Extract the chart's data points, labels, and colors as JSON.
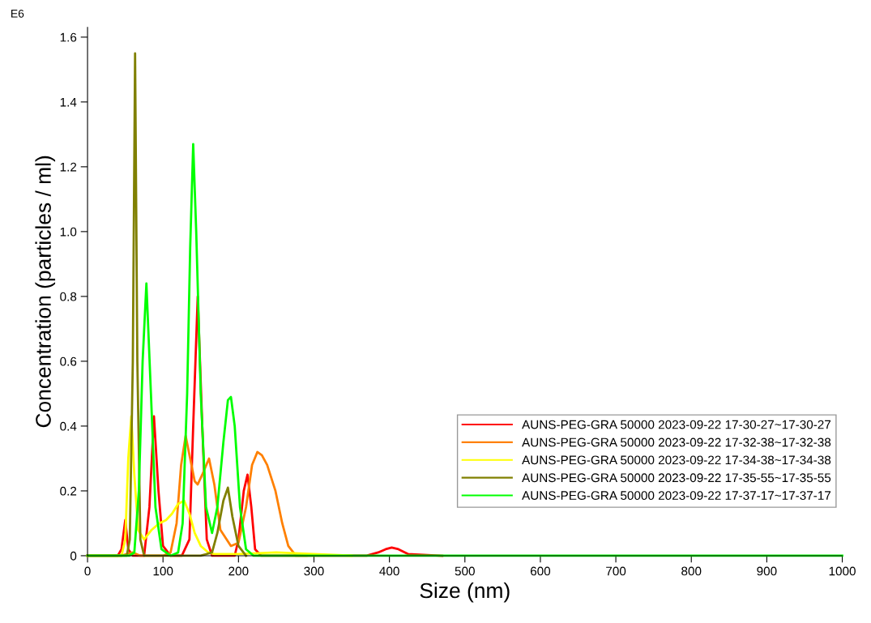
{
  "chart_data": {
    "type": "line",
    "xlabel": "Size (nm)",
    "ylabel": "Concentration (particles / ml)",
    "annotations": [
      "E6"
    ],
    "xlim": [
      0,
      1000
    ],
    "xticks": [
      0,
      100,
      200,
      300,
      400,
      500,
      600,
      700,
      800,
      900,
      1000
    ],
    "ylim": [
      0,
      1.63
    ],
    "yticks": [
      {
        "value": 0,
        "label": "0"
      },
      0.2,
      0.4,
      0.6,
      0.8,
      {
        "value": 1.0,
        "label": "1.0"
      },
      1.2,
      1.4,
      1.6
    ],
    "grid": false,
    "legend": "bottom right",
    "marker": "none",
    "line_style": "solid",
    "series": [
      {
        "name": "AUNS-PEG-GRA 50000 2023-09-22 17-30-27~17-30-27",
        "color": "#ff0000",
        "x": [
          0,
          40,
          45,
          50,
          54,
          60,
          75,
          82,
          88,
          94,
          100,
          110,
          125,
          135,
          140,
          146,
          152,
          158,
          165,
          195,
          200,
          207,
          212,
          217,
          222,
          230,
          300,
          370,
          385,
          395,
          403,
          412,
          425,
          470
        ],
        "values": [
          0,
          0,
          0.02,
          0.11,
          0.02,
          0,
          0,
          0.15,
          0.43,
          0.2,
          0.03,
          0,
          0,
          0.05,
          0.4,
          0.8,
          0.4,
          0.05,
          0,
          0,
          0.05,
          0.2,
          0.25,
          0.15,
          0.02,
          0,
          0,
          0,
          0.01,
          0.02,
          0.025,
          0.02,
          0.005,
          0
        ]
      },
      {
        "name": "AUNS-PEG-GRA 50000 2023-09-22 17-32-38~17-32-38",
        "color": "#ff8000",
        "x": [
          0,
          45,
          60,
          70,
          100,
          110,
          118,
          124,
          130,
          136,
          142,
          146,
          152,
          161,
          168,
          176,
          190,
          200,
          210,
          218,
          225,
          231,
          238,
          249,
          258,
          266,
          276,
          290
        ],
        "values": [
          0,
          0,
          0.01,
          0,
          0,
          0.01,
          0.1,
          0.28,
          0.37,
          0.3,
          0.23,
          0.22,
          0.25,
          0.3,
          0.22,
          0.08,
          0.03,
          0.04,
          0.15,
          0.28,
          0.32,
          0.31,
          0.28,
          0.2,
          0.1,
          0.03,
          0,
          0
        ]
      },
      {
        "name": "AUNS-PEG-GRA 50000 2023-09-22 17-34-38~17-34-38",
        "color": "#ffff00",
        "x": [
          0,
          45,
          50,
          54,
          58,
          62,
          67,
          75,
          85,
          95,
          104,
          112,
          120,
          128,
          135,
          142,
          150,
          160,
          168,
          200,
          250,
          300,
          350
        ],
        "values": [
          0,
          0,
          0.05,
          0.3,
          0.43,
          0.25,
          0.08,
          0.05,
          0.08,
          0.1,
          0.11,
          0.13,
          0.16,
          0.17,
          0.13,
          0.07,
          0.03,
          0.01,
          0.005,
          0.005,
          0.01,
          0.005,
          0
        ]
      },
      {
        "name": "AUNS-PEG-GRA 50000 2023-09-22 17-35-55~17-35-55",
        "color": "#808000",
        "x": [
          0,
          52,
          56,
          60,
          63,
          66,
          70,
          75,
          150,
          165,
          172,
          180,
          186,
          192,
          200,
          210
        ],
        "values": [
          0,
          0,
          0.05,
          0.6,
          1.55,
          0.6,
          0.05,
          0,
          0,
          0.01,
          0.07,
          0.17,
          0.21,
          0.12,
          0.03,
          0
        ]
      },
      {
        "name": "AUNS-PEG-GRA 50000 2023-09-22 17-37-17~17-37-17",
        "color": "#00ff00",
        "x": [
          0,
          55,
          62,
          68,
          73,
          78,
          84,
          90,
          98,
          110,
          120,
          126,
          132,
          136,
          140,
          144,
          150,
          157,
          165,
          172,
          180,
          186,
          190,
          195,
          202,
          210,
          220,
          1000
        ],
        "values": [
          0,
          0,
          0.01,
          0.2,
          0.6,
          0.84,
          0.5,
          0.15,
          0.02,
          0,
          0.01,
          0.1,
          0.5,
          0.95,
          1.27,
          1.0,
          0.5,
          0.15,
          0.07,
          0.15,
          0.35,
          0.48,
          0.49,
          0.4,
          0.15,
          0.02,
          0,
          0
        ]
      }
    ]
  }
}
